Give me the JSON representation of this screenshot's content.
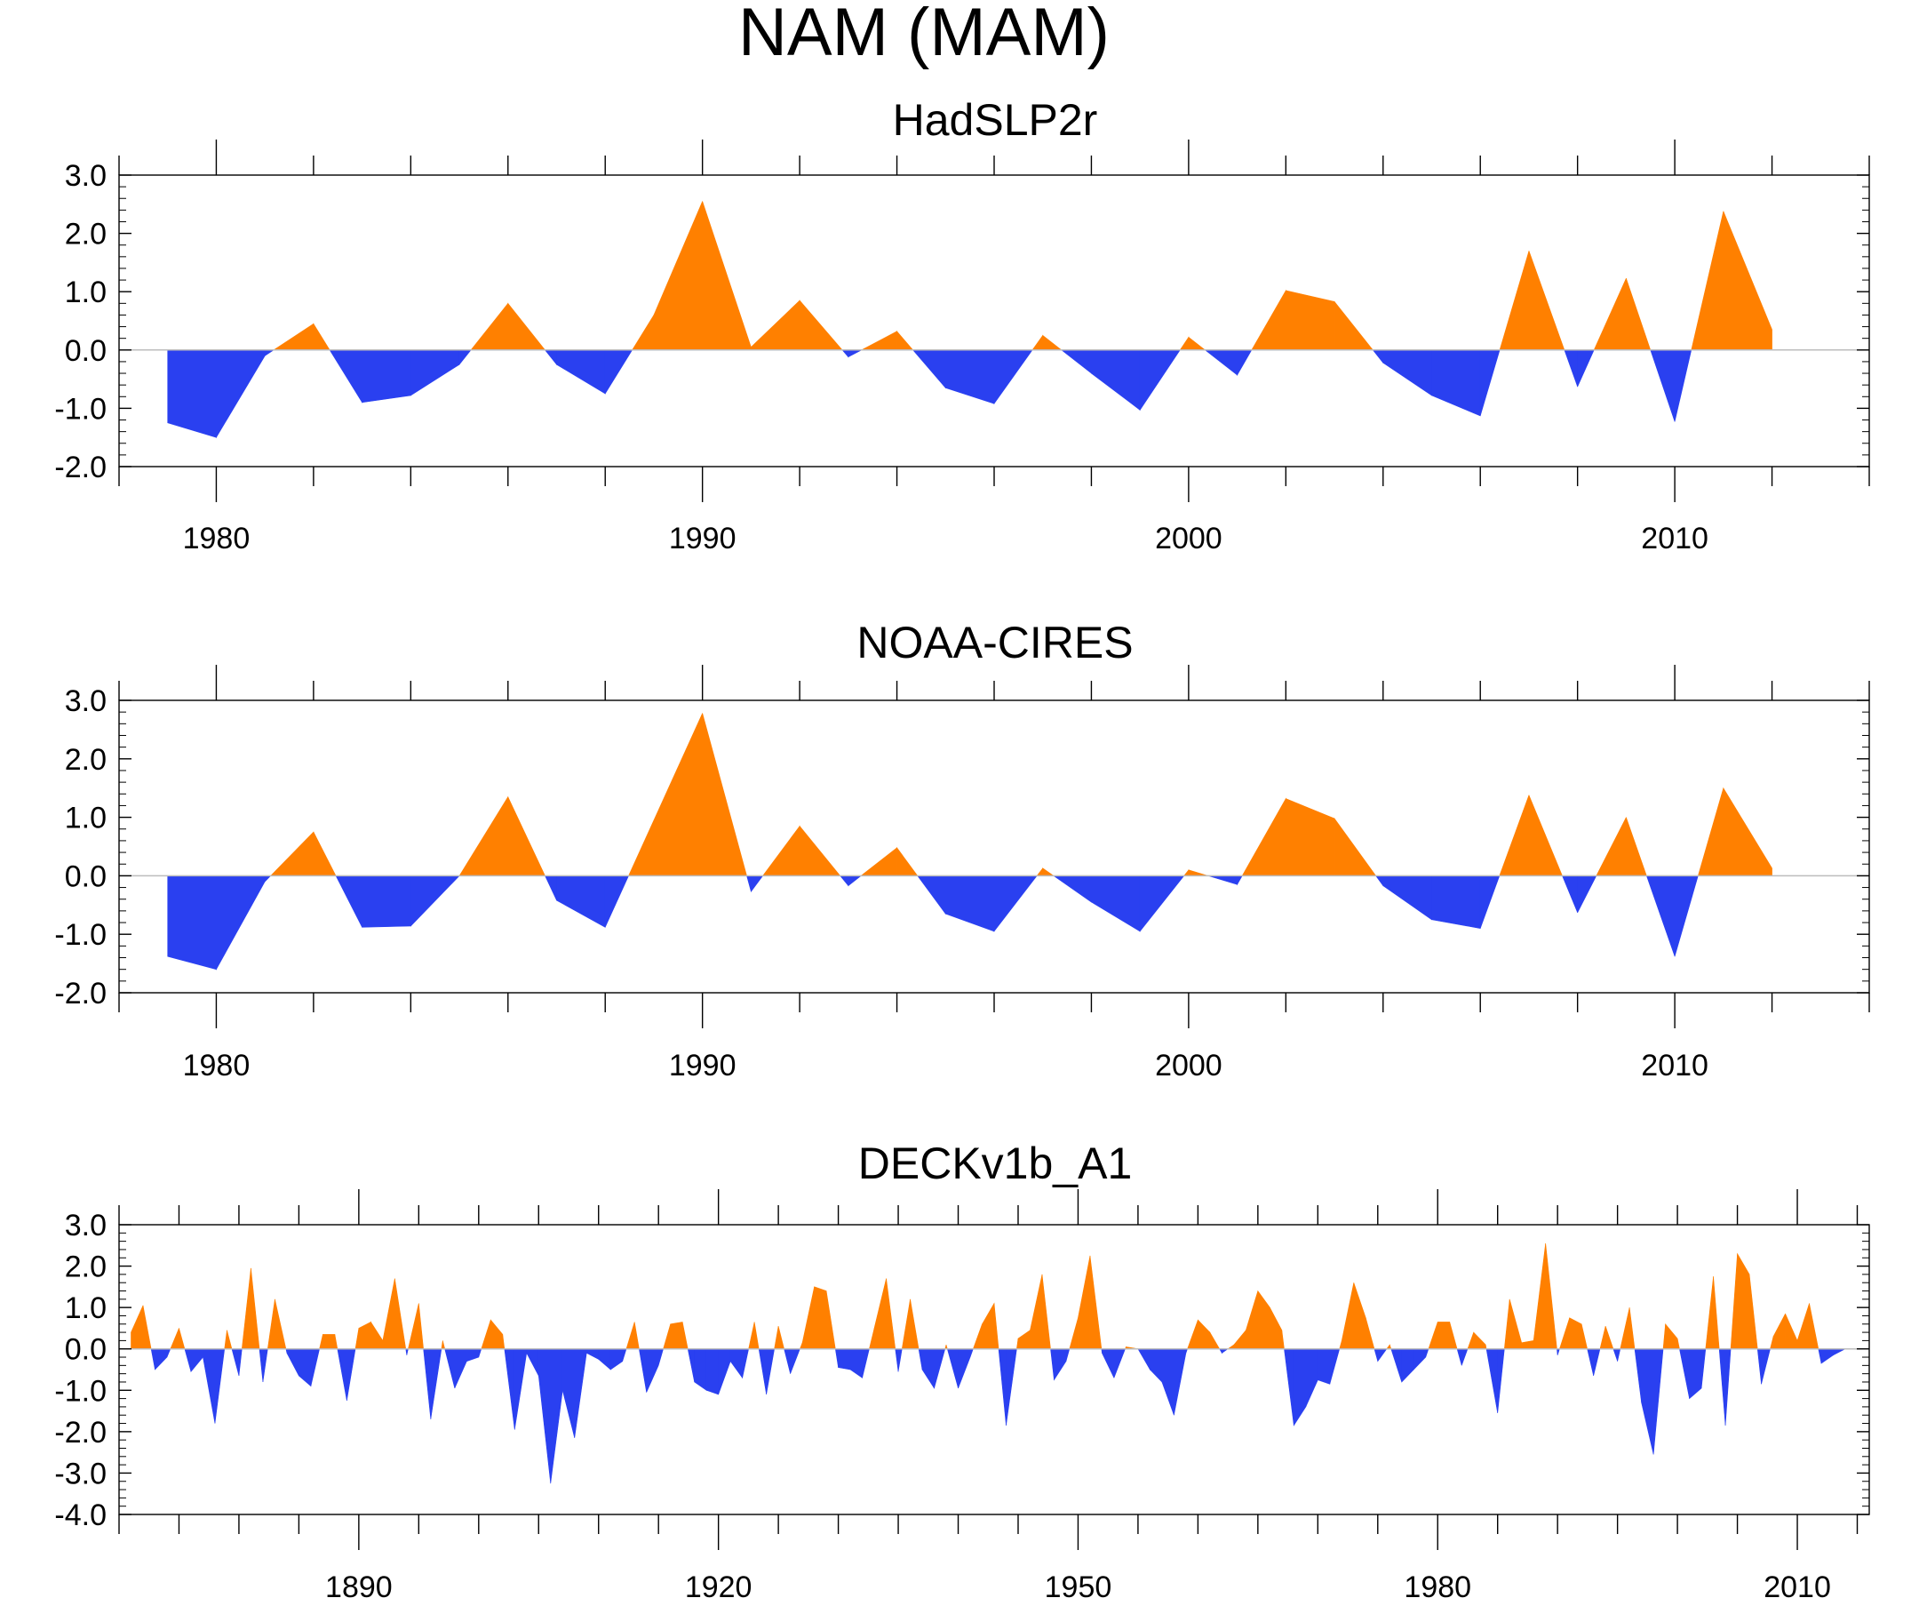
{
  "colors": {
    "positive": "#ff8000",
    "negative": "#2a40f0",
    "zero_line": "#bdbdbd",
    "axis": "#000000"
  },
  "chart_data": [
    {
      "type": "area",
      "figure_title": "NAM (MAM)",
      "title": "HadSLP2r",
      "xlim": [
        1978,
        2014
      ],
      "ylim": [
        -2,
        3
      ],
      "yticks": [
        "3.0",
        "2.0",
        "1.0",
        "0.0",
        "-1.0",
        "-2.0"
      ],
      "xticks": [
        "1980",
        "1990",
        "2000",
        "2010"
      ],
      "x": [
        1979,
        1980,
        1981,
        1982,
        1983,
        1984,
        1985,
        1986,
        1987,
        1988,
        1989,
        1990,
        1991,
        1992,
        1993,
        1994,
        1995,
        1996,
        1997,
        1998,
        1999,
        2000,
        2001,
        2002,
        2003,
        2004,
        2005,
        2006,
        2007,
        2008,
        2009,
        2010,
        2011,
        2012
      ],
      "values": [
        -1.25,
        -1.5,
        -0.1,
        0.45,
        -0.9,
        -0.78,
        -0.25,
        0.8,
        -0.25,
        -0.75,
        0.6,
        2.55,
        0.05,
        0.85,
        -0.12,
        0.32,
        -0.65,
        -0.92,
        0.25,
        -0.4,
        -1.03,
        0.22,
        -0.43,
        1.02,
        0.83,
        -0.22,
        -0.78,
        -1.13,
        1.7,
        -0.63,
        1.23,
        -1.23,
        2.38,
        0.35
      ]
    },
    {
      "type": "area",
      "title": "NOAA-CIRES",
      "xlim": [
        1978,
        2014
      ],
      "ylim": [
        -2,
        3
      ],
      "yticks": [
        "3.0",
        "2.0",
        "1.0",
        "0.0",
        "-1.0",
        "-2.0"
      ],
      "xticks": [
        "1980",
        "1990",
        "2000",
        "2010"
      ],
      "x": [
        1979,
        1980,
        1981,
        1982,
        1983,
        1984,
        1985,
        1986,
        1987,
        1988,
        1989,
        1990,
        1991,
        1992,
        1993,
        1994,
        1995,
        1996,
        1997,
        1998,
        1999,
        2000,
        2001,
        2002,
        2003,
        2004,
        2005,
        2006,
        2007,
        2008,
        2009,
        2010,
        2011,
        2012
      ],
      "values": [
        -1.38,
        -1.6,
        -0.1,
        0.75,
        -0.88,
        -0.86,
        0.0,
        1.35,
        -0.42,
        -0.88,
        0.95,
        2.78,
        -0.27,
        0.85,
        -0.17,
        0.48,
        -0.65,
        -0.95,
        0.13,
        -0.45,
        -0.95,
        0.1,
        -0.15,
        1.32,
        0.98,
        -0.17,
        -0.75,
        -0.9,
        1.38,
        -0.63,
        1.0,
        -1.38,
        1.5,
        0.13
      ]
    },
    {
      "type": "area",
      "title": "DECKv1b_A1",
      "xlim": [
        1870,
        2016
      ],
      "ylim": [
        -4,
        3
      ],
      "yticks": [
        "3.0",
        "2.0",
        "1.0",
        "0.0",
        "-1.0",
        "-2.0",
        "-3.0",
        "-4.0"
      ],
      "xticks": [
        "1890",
        "1920",
        "1950",
        "1980",
        "2010"
      ],
      "x": [
        1871,
        1872,
        1873,
        1874,
        1875,
        1876,
        1877,
        1878,
        1879,
        1880,
        1881,
        1882,
        1883,
        1884,
        1885,
        1886,
        1887,
        1888,
        1889,
        1890,
        1891,
        1892,
        1893,
        1894,
        1895,
        1896,
        1897,
        1898,
        1899,
        1900,
        1901,
        1902,
        1903,
        1904,
        1905,
        1906,
        1907,
        1908,
        1909,
        1910,
        1911,
        1912,
        1913,
        1914,
        1915,
        1916,
        1917,
        1918,
        1919,
        1920,
        1921,
        1922,
        1923,
        1924,
        1925,
        1926,
        1927,
        1928,
        1929,
        1930,
        1931,
        1932,
        1933,
        1934,
        1935,
        1936,
        1937,
        1938,
        1939,
        1940,
        1941,
        1942,
        1943,
        1944,
        1945,
        1946,
        1947,
        1948,
        1949,
        1950,
        1951,
        1952,
        1953,
        1954,
        1955,
        1956,
        1957,
        1958,
        1959,
        1960,
        1961,
        1962,
        1963,
        1964,
        1965,
        1966,
        1967,
        1968,
        1969,
        1970,
        1971,
        1972,
        1973,
        1974,
        1975,
        1976,
        1977,
        1978,
        1979,
        1980,
        1981,
        1982,
        1983,
        1984,
        1985,
        1986,
        1987,
        1988,
        1989,
        1990,
        1991,
        1992,
        1993,
        1994,
        1995,
        1996,
        1997,
        1998,
        1999,
        2000,
        2001,
        2002,
        2003,
        2004,
        2005,
        2006,
        2007,
        2008,
        2009,
        2010,
        2011,
        2012,
        2013,
        2014
      ],
      "values": [
        0.4,
        1.05,
        -0.5,
        -0.2,
        0.5,
        -0.55,
        -0.2,
        -1.8,
        0.45,
        -0.65,
        1.95,
        -0.8,
        1.2,
        -0.1,
        -0.65,
        -0.9,
        0.35,
        0.35,
        -1.25,
        0.5,
        0.65,
        0.2,
        1.7,
        -0.15,
        1.1,
        -1.7,
        0.2,
        -0.95,
        -0.3,
        -0.2,
        0.7,
        0.35,
        -1.95,
        -0.1,
        -0.65,
        -3.25,
        -1.0,
        -2.15,
        -0.1,
        -0.25,
        -0.5,
        -0.3,
        0.65,
        -1.05,
        -0.4,
        0.6,
        0.65,
        -0.8,
        -1.0,
        -1.1,
        -0.3,
        -0.7,
        0.65,
        -1.1,
        0.55,
        -0.6,
        0.15,
        1.5,
        1.4,
        -0.45,
        -0.5,
        -0.7,
        0.5,
        1.7,
        -0.55,
        1.2,
        -0.5,
        -0.95,
        0.1,
        -0.95,
        -0.2,
        0.6,
        1.1,
        -1.85,
        0.25,
        0.45,
        1.8,
        -0.75,
        -0.3,
        0.75,
        2.25,
        -0.1,
        -0.7,
        0.05,
        0.0,
        -0.5,
        -0.8,
        -1.6,
        -0.1,
        0.7,
        0.4,
        -0.1,
        0.1,
        0.45,
        1.4,
        1.0,
        0.45,
        -1.85,
        -1.4,
        -0.75,
        -0.85,
        0.2,
        1.6,
        0.75,
        -0.3,
        0.1,
        -0.8,
        -0.5,
        -0.2,
        0.65,
        0.65,
        -0.4,
        0.4,
        0.1,
        -1.55,
        1.2,
        0.15,
        0.2,
        2.55,
        -0.15,
        0.75,
        0.6,
        -0.65,
        0.55,
        -0.3,
        1.0,
        -1.3,
        -2.55,
        0.6,
        0.25,
        -1.2,
        -0.95,
        1.75,
        -1.85,
        2.3,
        1.8,
        -0.85,
        0.3,
        0.85,
        0.2,
        1.1,
        -0.35,
        -0.15,
        0.0
      ]
    }
  ]
}
